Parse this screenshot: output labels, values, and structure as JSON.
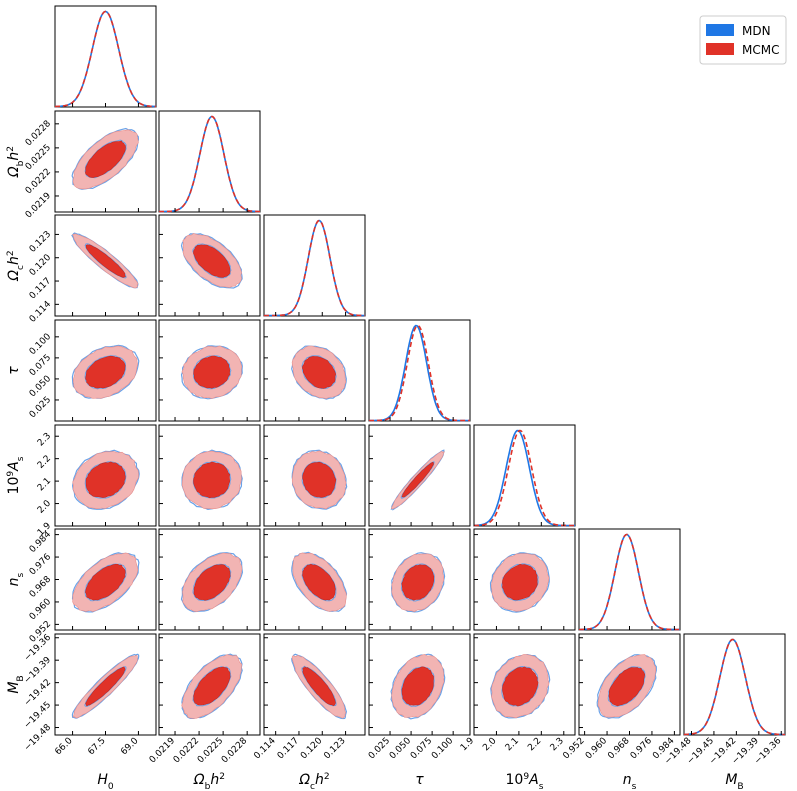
{
  "chart_data": {
    "type": "corner",
    "parameters": [
      {
        "key": "H0",
        "label": "H",
        "sub": "0",
        "range": [
          65.2,
          69.8
        ],
        "ticks": [
          66.0,
          67.5,
          69.0
        ],
        "tick_labels": [
          "66.0",
          "67.5",
          "69.0"
        ],
        "mean": 67.5,
        "sd": 0.6
      },
      {
        "key": "omb",
        "label": "Ω",
        "sub": "b",
        "post": "h",
        "sup": "2",
        "range": [
          0.0217,
          0.02296
        ],
        "ticks": [
          0.0219,
          0.0222,
          0.0225,
          0.0228
        ],
        "tick_labels": [
          "0.0219",
          "0.0222",
          "0.0225",
          "0.0228"
        ],
        "mean": 0.02236,
        "sd": 0.00015
      },
      {
        "key": "omc",
        "label": "Ω",
        "sub": "c",
        "post": "h",
        "sup": "2",
        "range": [
          0.1125,
          0.1255
        ],
        "ticks": [
          0.114,
          0.117,
          0.12,
          0.123
        ],
        "tick_labels": [
          "0.114",
          "0.117",
          "0.120",
          "0.123"
        ],
        "mean": 0.1196,
        "sd": 0.0014
      },
      {
        "key": "tau",
        "label": "τ",
        "range": [
          0.0,
          0.12
        ],
        "ticks": [
          0.025,
          0.05,
          0.075,
          0.1
        ],
        "tick_labels": [
          "0.025",
          "0.050",
          "0.075",
          "0.100"
        ],
        "mean": 0.058,
        "sd": 0.0125
      },
      {
        "key": "As",
        "label": "10",
        "labelsup": "9",
        "post": "A",
        "sub": "s",
        "range": [
          1.9,
          2.35
        ],
        "ticks": [
          1.9,
          2.0,
          2.1,
          2.2,
          2.3
        ],
        "tick_labels": [
          "1.9",
          "2.0",
          "2.1",
          "2.2",
          "2.3"
        ],
        "mean": 2.105,
        "sd": 0.052
      },
      {
        "key": "ns",
        "label": "n",
        "sub": "s",
        "range": [
          0.95,
          0.986
        ],
        "ticks": [
          0.952,
          0.96,
          0.968,
          0.976,
          0.984
        ],
        "tick_labels": [
          "0.952",
          "0.960",
          "0.968",
          "0.976",
          "0.984"
        ],
        "mean": 0.967,
        "sd": 0.0042
      },
      {
        "key": "MB",
        "label": "M",
        "sub": "B",
        "range": [
          -19.49,
          -19.355
        ],
        "ticks": [
          -19.48,
          -19.45,
          -19.42,
          -19.39,
          -19.36
        ],
        "tick_labels": [
          "−19.48",
          "−19.45",
          "−19.42",
          "−19.39",
          "−19.36"
        ],
        "mean": -19.425,
        "sd": 0.017
      }
    ],
    "correlations": [
      [
        "H0",
        "omb",
        0.65
      ],
      [
        "H0",
        "omc",
        -0.92
      ],
      [
        "H0",
        "tau",
        0.3
      ],
      [
        "H0",
        "As",
        0.2
      ],
      [
        "H0",
        "ns",
        0.55
      ],
      [
        "H0",
        "MB",
        0.93
      ],
      [
        "omb",
        "omc",
        -0.55
      ],
      [
        "omb",
        "tau",
        0.1
      ],
      [
        "omb",
        "As",
        0.05
      ],
      [
        "omb",
        "ns",
        0.45
      ],
      [
        "omb",
        "MB",
        0.6
      ],
      [
        "omc",
        "tau",
        -0.25
      ],
      [
        "omc",
        "As",
        -0.1
      ],
      [
        "omc",
        "ns",
        -0.5
      ],
      [
        "omc",
        "MB",
        -0.86
      ],
      [
        "tau",
        "As",
        0.96
      ],
      [
        "tau",
        "ns",
        0.2
      ],
      [
        "tau",
        "MB",
        0.28
      ],
      [
        "As",
        "ns",
        0.15
      ],
      [
        "As",
        "MB",
        0.2
      ],
      [
        "ns",
        "MB",
        0.5
      ]
    ],
    "series": [
      {
        "name": "MDN",
        "color": "#1f77e5",
        "line": "solid",
        "diag_shift": {
          "tau": -0.002,
          "As": -0.01
        }
      },
      {
        "name": "MCMC",
        "color": "#e03228",
        "line": "dashed",
        "diag_shift": {
          "tau": 0.0,
          "As": 0.0
        }
      }
    ],
    "contour_colors": {
      "inner": "#e03228",
      "outer": "#f2b4b3",
      "mdn_edge": "#6aa2e8"
    },
    "legend": {
      "position": "top-right",
      "entries": [
        "MDN",
        "MCMC"
      ]
    }
  }
}
